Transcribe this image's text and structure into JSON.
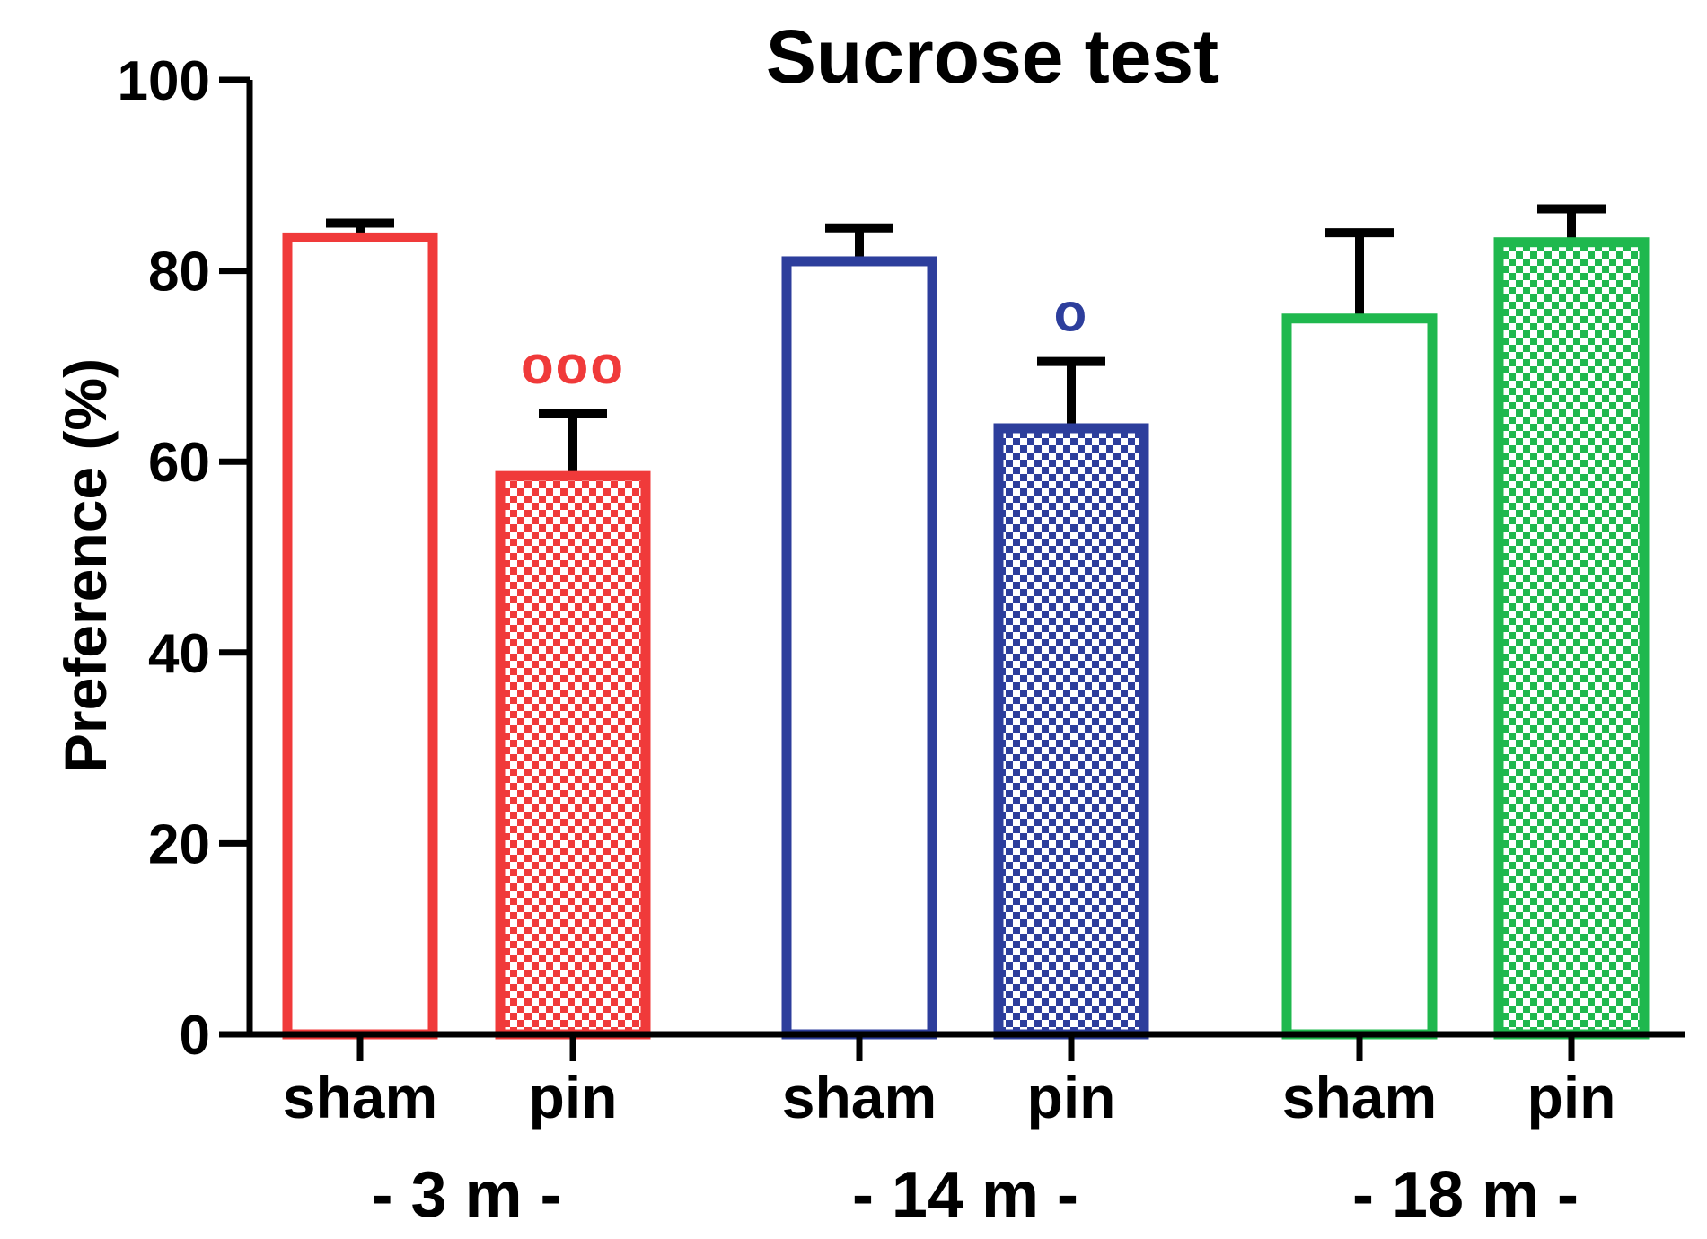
{
  "chart_data": {
    "type": "bar",
    "title": "Sucrose test",
    "ylabel": "Preference (%)",
    "xlabel": "",
    "ylim": [
      0,
      100
    ],
    "yticks": [
      "0",
      "20",
      "40",
      "60",
      "80",
      "100"
    ],
    "groups": [
      {
        "label": "- 3 m -",
        "color": "#f03a3a",
        "bars": [
          {
            "category": "sham",
            "value": 83.5,
            "error": 1.5,
            "pattern": "open",
            "annotation": ""
          },
          {
            "category": "pin",
            "value": 58.5,
            "error": 6.5,
            "pattern": "checkered",
            "annotation": "ooo"
          }
        ]
      },
      {
        "label": "- 14 m -",
        "color": "#2d3e9c",
        "bars": [
          {
            "category": "sham",
            "value": 81,
            "error": 3.5,
            "pattern": "open",
            "annotation": ""
          },
          {
            "category": "pin",
            "value": 63.5,
            "error": 7,
            "pattern": "checkered",
            "annotation": "o"
          }
        ]
      },
      {
        "label": "- 18 m -",
        "color": "#1fb84e",
        "bars": [
          {
            "category": "sham",
            "value": 75,
            "error": 9,
            "pattern": "open",
            "annotation": ""
          },
          {
            "category": "pin",
            "value": 83,
            "error": 3.5,
            "pattern": "checkered",
            "annotation": ""
          }
        ]
      }
    ]
  }
}
